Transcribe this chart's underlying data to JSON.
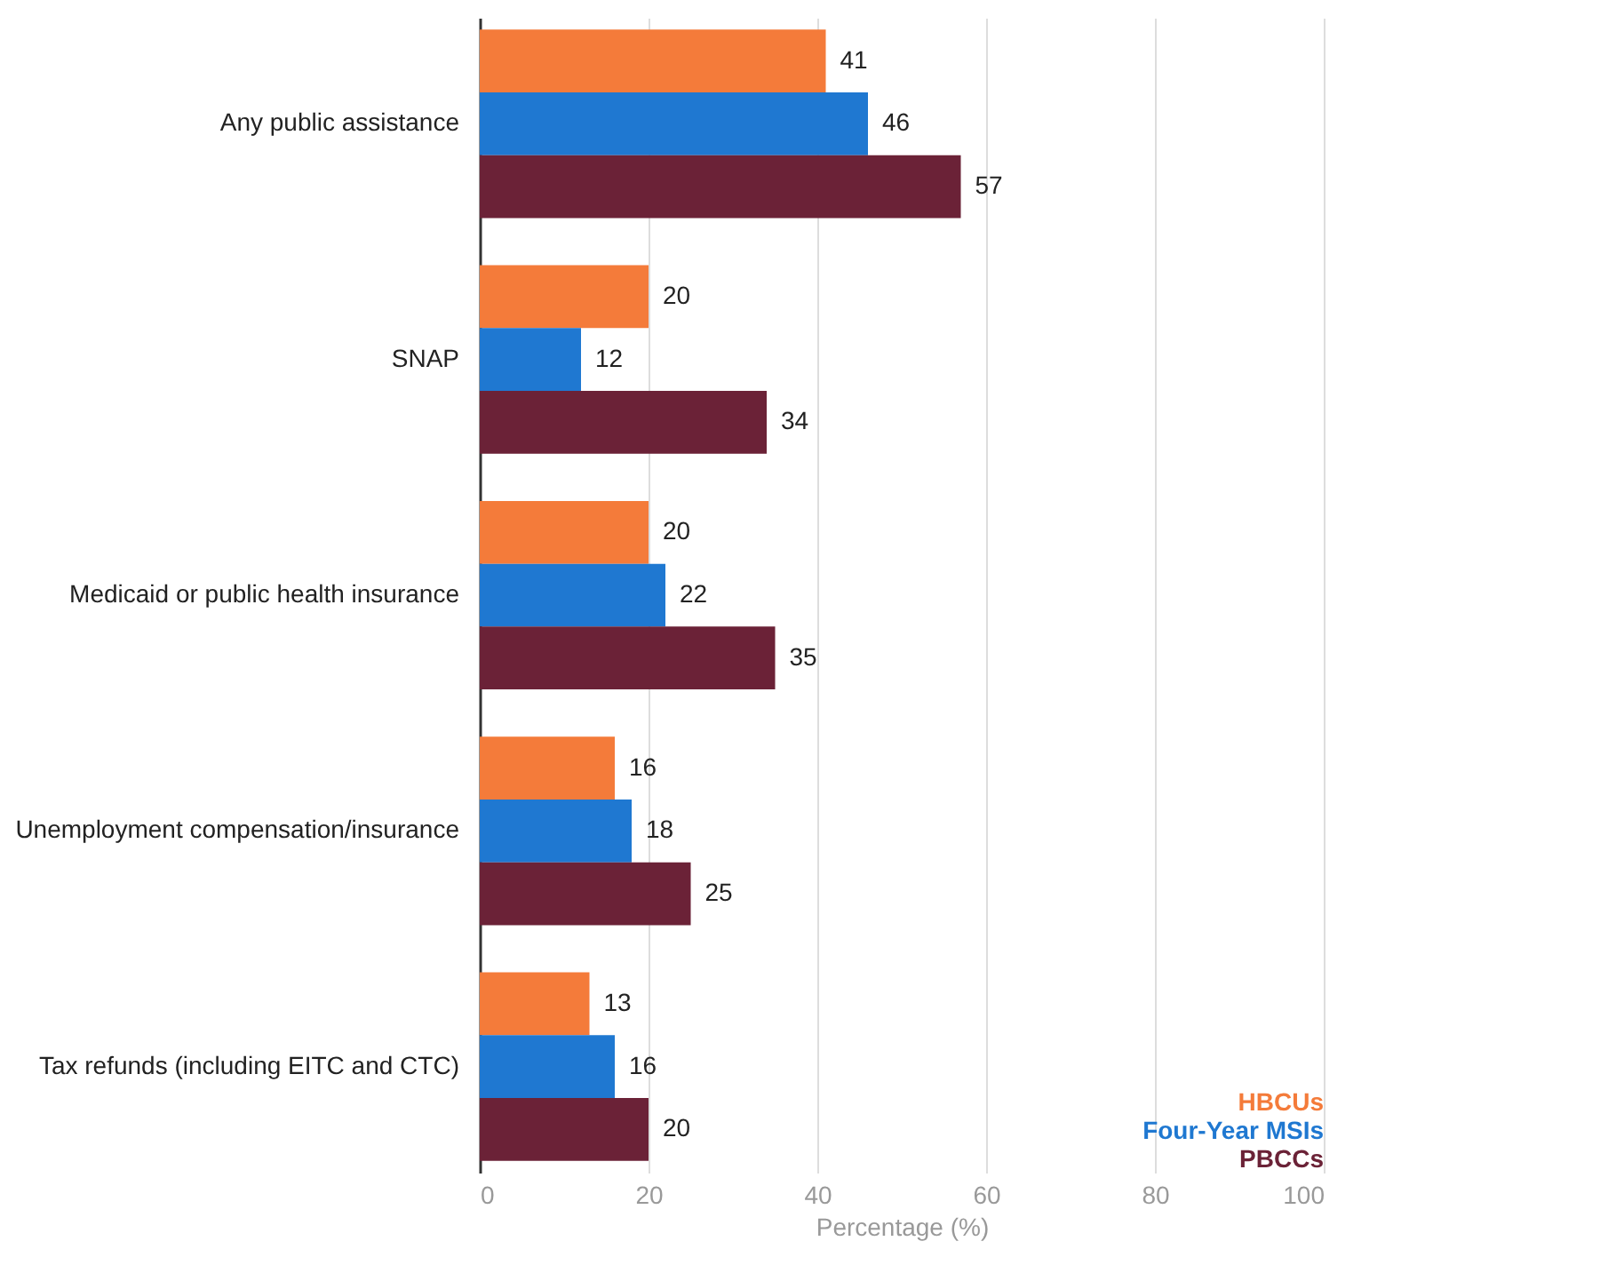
{
  "chart_data": {
    "type": "bar",
    "orientation": "horizontal",
    "xlabel": "Percentage (%)",
    "categories": [
      "Any public assistance",
      "SNAP",
      "Medicaid or public health insurance",
      "Unemployment compensation/insurance",
      "Tax refunds (including EITC and CTC)"
    ],
    "series": [
      {
        "name": "HBCUs",
        "color": "#f47b3a",
        "values": [
          41,
          20,
          20,
          16,
          13
        ]
      },
      {
        "name": "Four-Year MSIs",
        "color": "#1f78d1",
        "values": [
          46,
          12,
          22,
          18,
          16
        ]
      },
      {
        "name": "PBCCs",
        "color": "#6b2237",
        "values": [
          57,
          34,
          35,
          25,
          20
        ]
      }
    ],
    "xlim": [
      0,
      100
    ],
    "xticks": [
      0,
      20,
      40,
      60,
      80,
      100
    ],
    "grid": "x",
    "legend": "bottom right",
    "data_labels": true
  }
}
